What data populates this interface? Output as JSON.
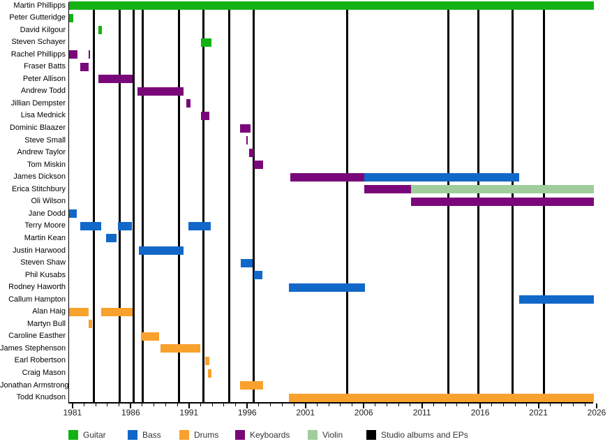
{
  "chart_data": {
    "type": "timeline",
    "description": "Band members timeline (gantt-style xrange chart)",
    "x_axis": {
      "min": 1980.65,
      "max": 2025.7,
      "major_ticks": [
        1981,
        1986,
        1991,
        1996,
        2001,
        2006,
        2011,
        2016,
        2021,
        2026
      ],
      "minor_tick_start": 1981,
      "minor_tick_end": 2025,
      "minor_tick_interval": 1
    },
    "colors": {
      "guitar": "#13B213",
      "bass": "#1168C8",
      "drums": "#F9A12D",
      "keyboards": "#7A077A",
      "violin": "#9FCD9C",
      "albums": "#000000"
    },
    "legend": [
      {
        "label": "Guitar",
        "color": "guitar"
      },
      {
        "label": "Bass",
        "color": "bass"
      },
      {
        "label": "Drums",
        "color": "drums"
      },
      {
        "label": "Keyboards",
        "color": "keyboards"
      },
      {
        "label": "Violin",
        "color": "violin"
      },
      {
        "label": "Studio albums and EPs",
        "color": "albums"
      }
    ],
    "album_lines": [
      1982.8,
      1985.0,
      1986.2,
      1987.0,
      1990.1,
      1992.2,
      1994.4,
      1996.5,
      2004.5,
      2013.2,
      2015.8,
      2018.7,
      2021.4
    ],
    "members": [
      {
        "name": "Martin Phillipps",
        "segments": [
          {
            "instrument": "guitar",
            "start": 1980.65,
            "end": 2025.7
          }
        ]
      },
      {
        "name": "Peter Gutteridge",
        "segments": [
          {
            "instrument": "guitar",
            "start": 1980.65,
            "end": 1981.0
          }
        ]
      },
      {
        "name": "David Kilgour",
        "segments": [
          {
            "instrument": "guitar",
            "start": 1983.15,
            "end": 1983.45
          }
        ]
      },
      {
        "name": "Steven Schayer",
        "segments": [
          {
            "instrument": "guitar",
            "start": 1992.0,
            "end": 1992.9
          }
        ]
      },
      {
        "name": "Rachel Phillipps",
        "segments": [
          {
            "instrument": "keyboards",
            "start": 1980.65,
            "end": 1981.35
          },
          {
            "instrument": "keyboards",
            "start": 1982.3,
            "end": 1982.45
          }
        ]
      },
      {
        "name": "Fraser Batts",
        "segments": [
          {
            "instrument": "keyboards",
            "start": 1981.6,
            "end": 1982.3
          }
        ]
      },
      {
        "name": "Peter Allison",
        "segments": [
          {
            "instrument": "keyboards",
            "start": 1983.15,
            "end": 1986.1
          }
        ]
      },
      {
        "name": "Andrew Todd",
        "segments": [
          {
            "instrument": "keyboards",
            "start": 1986.5,
            "end": 1990.45
          }
        ]
      },
      {
        "name": "Jillian Dempster",
        "segments": [
          {
            "instrument": "keyboards",
            "start": 1990.7,
            "end": 1991.1
          }
        ]
      },
      {
        "name": "Lisa Mednick",
        "segments": [
          {
            "instrument": "keyboards",
            "start": 1992.0,
            "end": 1992.7
          }
        ]
      },
      {
        "name": "Dominic Blaazer",
        "segments": [
          {
            "instrument": "keyboards",
            "start": 1995.35,
            "end": 1996.2
          }
        ]
      },
      {
        "name": "Steve Small",
        "segments": [
          {
            "instrument": "keyboards",
            "start": 1995.85,
            "end": 1996.0
          }
        ]
      },
      {
        "name": "Andrew Taylor",
        "segments": [
          {
            "instrument": "keyboards",
            "start": 1996.1,
            "end": 1996.5
          }
        ]
      },
      {
        "name": "Tom Miskin",
        "segments": [
          {
            "instrument": "keyboards",
            "start": 1996.5,
            "end": 1997.3
          }
        ]
      },
      {
        "name": "James Dickson",
        "segments": [
          {
            "instrument": "keyboards",
            "start": 1999.65,
            "end": 2006.0
          },
          {
            "instrument": "bass",
            "start": 2006.0,
            "end": 2019.3
          }
        ]
      },
      {
        "name": "Erica Stitchbury",
        "segments": [
          {
            "instrument": "keyboards",
            "start": 2006.0,
            "end": 2010.0
          },
          {
            "instrument": "violin",
            "start": 2010.0,
            "end": 2025.7
          }
        ]
      },
      {
        "name": "Oli Wilson",
        "segments": [
          {
            "instrument": "keyboards",
            "start": 2010.0,
            "end": 2025.7
          }
        ]
      },
      {
        "name": "Jane Dodd",
        "segments": [
          {
            "instrument": "bass",
            "start": 1980.65,
            "end": 1981.3
          }
        ]
      },
      {
        "name": "Terry Moore",
        "segments": [
          {
            "instrument": "bass",
            "start": 1981.6,
            "end": 1983.4
          },
          {
            "instrument": "bass",
            "start": 1984.85,
            "end": 1986.05
          },
          {
            "instrument": "bass",
            "start": 1990.9,
            "end": 1992.8
          }
        ]
      },
      {
        "name": "Martin Kean",
        "segments": [
          {
            "instrument": "bass",
            "start": 1983.8,
            "end": 1984.75
          }
        ]
      },
      {
        "name": "Justin Harwood",
        "segments": [
          {
            "instrument": "bass",
            "start": 1986.65,
            "end": 1990.45
          }
        ]
      },
      {
        "name": "Steven Shaw",
        "segments": [
          {
            "instrument": "bass",
            "start": 1995.4,
            "end": 1996.4
          }
        ]
      },
      {
        "name": "Phil Kusabs",
        "segments": [
          {
            "instrument": "bass",
            "start": 1996.5,
            "end": 1997.25
          }
        ]
      },
      {
        "name": "Rodney Haworth",
        "segments": [
          {
            "instrument": "bass",
            "start": 1999.55,
            "end": 2006.05
          }
        ]
      },
      {
        "name": "Callum Hampton",
        "segments": [
          {
            "instrument": "bass",
            "start": 2019.3,
            "end": 2025.7
          }
        ]
      },
      {
        "name": "Alan Haig",
        "segments": [
          {
            "instrument": "drums",
            "start": 1980.65,
            "end": 1982.3
          },
          {
            "instrument": "drums",
            "start": 1983.4,
            "end": 1986.1
          }
        ]
      },
      {
        "name": "Martyn Bull",
        "segments": [
          {
            "instrument": "drums",
            "start": 1982.3,
            "end": 1982.6
          }
        ]
      },
      {
        "name": "Caroline Easther",
        "segments": [
          {
            "instrument": "drums",
            "start": 1986.8,
            "end": 1988.4
          }
        ]
      },
      {
        "name": "James Stephenson",
        "segments": [
          {
            "instrument": "drums",
            "start": 1988.5,
            "end": 1991.9
          }
        ]
      },
      {
        "name": "Earl Robertson",
        "segments": [
          {
            "instrument": "drums",
            "start": 1992.35,
            "end": 1992.7
          }
        ]
      },
      {
        "name": "Craig Mason",
        "segments": [
          {
            "instrument": "drums",
            "start": 1992.6,
            "end": 1992.85
          }
        ]
      },
      {
        "name": "Jonathan Armstrong",
        "segments": [
          {
            "instrument": "drums",
            "start": 1995.35,
            "end": 1997.3
          }
        ]
      },
      {
        "name": "Todd Knudson",
        "segments": [
          {
            "instrument": "drums",
            "start": 1999.5,
            "end": 2025.7
          }
        ]
      }
    ]
  }
}
